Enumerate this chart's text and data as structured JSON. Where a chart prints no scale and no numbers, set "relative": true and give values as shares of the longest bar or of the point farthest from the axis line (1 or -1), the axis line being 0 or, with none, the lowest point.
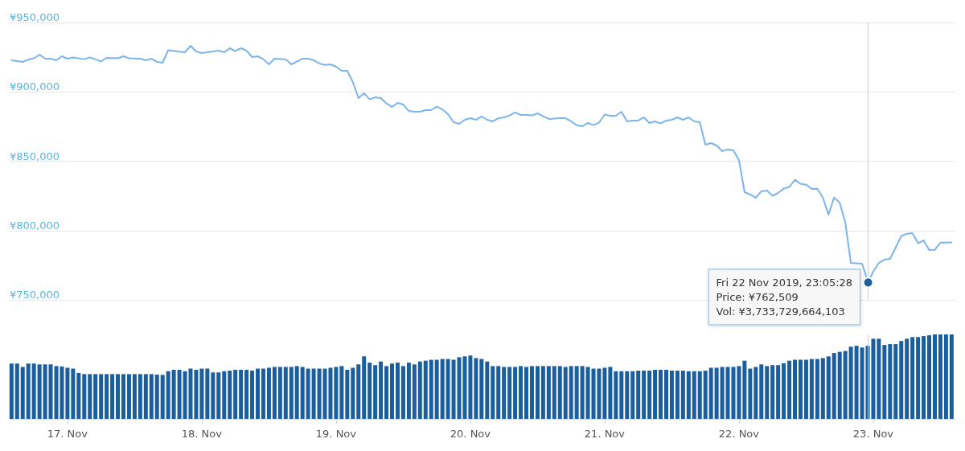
{
  "chart_data": [
    {
      "type": "line",
      "tick_labels": "y",
      "grid": "y",
      "xlim": [
        "2019-11-16T13:40",
        "2019-11-23T14:40"
      ],
      "ylim": [
        750000,
        950000
      ],
      "yticks": [
        {
          "value": 750000,
          "label": "¥750,000"
        },
        {
          "value": 800000,
          "label": "¥800,000"
        },
        {
          "value": 850000,
          "label": "¥850,000"
        },
        {
          "value": 900000,
          "label": "¥900,000"
        },
        {
          "value": 950000,
          "label": "¥950,000"
        }
      ],
      "ref_lines": [
        {
          "axis": "x",
          "value": "2019-11-22T23:05",
          "label": null,
          "color": "#cccccc"
        }
      ],
      "annotations": [
        {
          "text": "Fri 22 Nov 2019, 23:05:28\nPrice: ¥762,509\nVol: ¥3,733,729,664,103",
          "x": "2019-11-22T23:05",
          "y": 762509
        }
      ],
      "series": [
        {
          "color": "#7cb5ec",
          "x": [
            "2019-11-16T14:00",
            "2019-11-16T16:00",
            "2019-11-16T17:00",
            "2019-11-16T18:00",
            "2019-11-16T19:00",
            "2019-11-16T20:00",
            "2019-11-16T21:00",
            "2019-11-16T22:00",
            "2019-11-16T23:00",
            "2019-11-17T00:00",
            "2019-11-17T01:00",
            "2019-11-17T03:00",
            "2019-11-17T04:00",
            "2019-11-17T06:00",
            "2019-11-17T07:00",
            "2019-11-17T09:00",
            "2019-11-17T10:00",
            "2019-11-17T11:00",
            "2019-11-17T13:00",
            "2019-11-17T14:00",
            "2019-11-17T15:00",
            "2019-11-17T16:00",
            "2019-11-17T17:00",
            "2019-11-17T18:00",
            "2019-11-17T21:00",
            "2019-11-17T22:00",
            "2019-11-17T23:00",
            "2019-11-18T00:00",
            "2019-11-18T03:00",
            "2019-11-18T04:00",
            "2019-11-18T05:00",
            "2019-11-18T06:00",
            "2019-11-18T07:00",
            "2019-11-18T08:00",
            "2019-11-18T09:00",
            "2019-11-18T10:00",
            "2019-11-18T11:00",
            "2019-11-18T12:00",
            "2019-11-18T13:00",
            "2019-11-18T15:00",
            "2019-11-18T16:00",
            "2019-11-18T18:00",
            "2019-11-18T19:00",
            "2019-11-18T20:00",
            "2019-11-18T21:00",
            "2019-11-18T22:00",
            "2019-11-18T23:00",
            "2019-11-19T00:00",
            "2019-11-19T01:00",
            "2019-11-19T02:00",
            "2019-11-19T03:00",
            "2019-11-19T04:00",
            "2019-11-19T05:00",
            "2019-11-19T06:00",
            "2019-11-19T07:00",
            "2019-11-19T08:00",
            "2019-11-19T09:00",
            "2019-11-19T10:00",
            "2019-11-19T11:00",
            "2019-11-19T12:00",
            "2019-11-19T13:00",
            "2019-11-19T14:00",
            "2019-11-19T15:00",
            "2019-11-19T16:00",
            "2019-11-19T17:00",
            "2019-11-19T18:00",
            "2019-11-19T19:00",
            "2019-11-19T20:00",
            "2019-11-19T21:00",
            "2019-11-19T22:00",
            "2019-11-19T23:00",
            "2019-11-20T00:00",
            "2019-11-20T01:00",
            "2019-11-20T02:00",
            "2019-11-20T03:00",
            "2019-11-20T04:00",
            "2019-11-20T05:00",
            "2019-11-20T06:00",
            "2019-11-20T07:00",
            "2019-11-20T08:00",
            "2019-11-20T09:00",
            "2019-11-20T10:00",
            "2019-11-20T11:00",
            "2019-11-20T12:00",
            "2019-11-20T13:00",
            "2019-11-20T14:00",
            "2019-11-20T16:00",
            "2019-11-20T17:00",
            "2019-11-20T18:00",
            "2019-11-20T19:00",
            "2019-11-20T20:00",
            "2019-11-20T21:00",
            "2019-11-20T22:00",
            "2019-11-20T23:00",
            "2019-11-21T00:00",
            "2019-11-21T01:00",
            "2019-11-21T02:00",
            "2019-11-21T03:00",
            "2019-11-21T04:00",
            "2019-11-21T05:00",
            "2019-11-21T06:00",
            "2019-11-21T07:00",
            "2019-11-21T08:00",
            "2019-11-21T09:00",
            "2019-11-21T10:00",
            "2019-11-21T11:00",
            "2019-11-21T12:00",
            "2019-11-21T13:00",
            "2019-11-21T14:00",
            "2019-11-21T15:00",
            "2019-11-21T16:00",
            "2019-11-21T17:00",
            "2019-11-21T18:00",
            "2019-11-21T19:00",
            "2019-11-21T20:00",
            "2019-11-21T21:00",
            "2019-11-21T22:00",
            "2019-11-21T23:00",
            "2019-11-22T00:00",
            "2019-11-22T01:00",
            "2019-11-22T02:00",
            "2019-11-22T03:00",
            "2019-11-22T04:00",
            "2019-11-22T05:00",
            "2019-11-22T06:00",
            "2019-11-22T07:00",
            "2019-11-22T08:00",
            "2019-11-22T09:00",
            "2019-11-22T10:00",
            "2019-11-22T11:00",
            "2019-11-22T12:00",
            "2019-11-22T13:00",
            "2019-11-22T14:00",
            "2019-11-22T15:00",
            "2019-11-22T16:00",
            "2019-11-22T17:00",
            "2019-11-22T18:00",
            "2019-11-22T19:00",
            "2019-11-22T20:00",
            "2019-11-22T21:00",
            "2019-11-22T22:00",
            "2019-11-22T23:05",
            "2019-11-23T00:00",
            "2019-11-23T01:00",
            "2019-11-23T02:00",
            "2019-11-23T03:00",
            "2019-11-23T04:00",
            "2019-11-23T05:00",
            "2019-11-23T06:00",
            "2019-11-23T07:00",
            "2019-11-23T08:00",
            "2019-11-23T09:00",
            "2019-11-23T10:00",
            "2019-11-23T11:00",
            "2019-11-23T12:00",
            "2019-11-23T13:00",
            "2019-11-23T14:00"
          ],
          "values": [
            922750,
            921600,
            923350,
            924200,
            926800,
            923900,
            923900,
            922750,
            925650,
            923900,
            924800,
            923550,
            924850,
            921950,
            924500,
            924200,
            925650,
            924200,
            923900,
            922750,
            923900,
            921600,
            921000,
            930000,
            928550,
            933200,
            929100,
            927950,
            929700,
            928550,
            931450,
            929350,
            931450,
            929700,
            925050,
            925650,
            923550,
            919850,
            923900,
            923550,
            919850,
            923900,
            923900,
            922750,
            920450,
            919450,
            919850,
            918100,
            915200,
            915200,
            907100,
            895500,
            899000,
            894600,
            896100,
            895500,
            891650,
            889100,
            892000,
            890900,
            886200,
            885650,
            885650,
            886800,
            886800,
            889400,
            887400,
            883900,
            878100,
            876950,
            879850,
            881000,
            879850,
            882200,
            879850,
            878700,
            881000,
            881600,
            883000,
            885100,
            883350,
            883350,
            883000,
            884500,
            882400,
            880450,
            881000,
            881000,
            878700,
            876000,
            875200,
            877550,
            876000,
            877800,
            883600,
            882750,
            882750,
            885650,
            878700,
            879300,
            879300,
            881600,
            877550,
            878700,
            877200,
            879300,
            879850,
            881600,
            879850,
            881600,
            878700,
            878100,
            861900,
            863050,
            861300,
            857250,
            858400,
            857800,
            850850,
            827700,
            825950,
            823650,
            828250,
            828850,
            825000,
            827100,
            830200,
            831450,
            836600,
            833700,
            833100,
            830000,
            830200,
            823650,
            811450,
            823800,
            820150,
            805650,
            776650,
            776350,
            776100,
            762509,
            770600,
            776650,
            779000,
            779550,
            787700,
            796000,
            797700,
            798100,
            790850,
            792900,
            785950,
            786100,
            791300,
            791300,
            791500
          ]
        }
      ]
    },
    {
      "type": "bar",
      "relative": true,
      "tick_labels": "x",
      "xlim": [
        "2019-11-16T13:40",
        "2019-11-23T14:40"
      ],
      "xticks": [
        {
          "value": "2019-11-17",
          "label": "17. Nov"
        },
        {
          "value": "2019-11-18",
          "label": "18. Nov"
        },
        {
          "value": "2019-11-19",
          "label": "19. Nov"
        },
        {
          "value": "2019-11-20",
          "label": "20. Nov"
        },
        {
          "value": "2019-11-21",
          "label": "21. Nov"
        },
        {
          "value": "2019-11-22",
          "label": "22. Nov"
        },
        {
          "value": "2019-11-23",
          "label": "23. Nov"
        }
      ],
      "ref_lines": [
        {
          "axis": "x",
          "value": "2019-11-22T23:05",
          "label": null,
          "color": "#cccccc"
        }
      ],
      "x": [
        "2019-11-16T14:00",
        "2019-11-16T15:00",
        "2019-11-16T16:00",
        "2019-11-16T17:00",
        "2019-11-16T18:00",
        "2019-11-16T19:00",
        "2019-11-16T20:00",
        "2019-11-16T21:00",
        "2019-11-16T22:00",
        "2019-11-16T23:00",
        "2019-11-17T00:00",
        "2019-11-17T01:00",
        "2019-11-17T02:00",
        "2019-11-17T03:00",
        "2019-11-17T04:00",
        "2019-11-17T05:00",
        "2019-11-17T06:00",
        "2019-11-17T07:00",
        "2019-11-17T08:00",
        "2019-11-17T09:00",
        "2019-11-17T10:00",
        "2019-11-17T11:00",
        "2019-11-17T12:00",
        "2019-11-17T13:00",
        "2019-11-17T14:00",
        "2019-11-17T15:00",
        "2019-11-17T16:00",
        "2019-11-17T17:00",
        "2019-11-17T18:00",
        "2019-11-17T19:00",
        "2019-11-17T20:00",
        "2019-11-17T21:00",
        "2019-11-17T22:00",
        "2019-11-17T23:00",
        "2019-11-18T00:00",
        "2019-11-18T01:00",
        "2019-11-18T02:00",
        "2019-11-18T03:00",
        "2019-11-18T04:00",
        "2019-11-18T05:00",
        "2019-11-18T06:00",
        "2019-11-18T07:00",
        "2019-11-18T08:00",
        "2019-11-18T09:00",
        "2019-11-18T10:00",
        "2019-11-18T11:00",
        "2019-11-18T12:00",
        "2019-11-18T13:00",
        "2019-11-18T14:00",
        "2019-11-18T15:00",
        "2019-11-18T16:00",
        "2019-11-18T17:00",
        "2019-11-18T18:00",
        "2019-11-18T19:00",
        "2019-11-18T20:00",
        "2019-11-18T21:00",
        "2019-11-18T22:00",
        "2019-11-18T23:00",
        "2019-11-19T00:00",
        "2019-11-19T01:00",
        "2019-11-19T02:00",
        "2019-11-19T03:00",
        "2019-11-19T04:00",
        "2019-11-19T05:00",
        "2019-11-19T06:00",
        "2019-11-19T07:00",
        "2019-11-19T08:00",
        "2019-11-19T09:00",
        "2019-11-19T10:00",
        "2019-11-19T11:00",
        "2019-11-19T12:00",
        "2019-11-19T13:00",
        "2019-11-19T14:00",
        "2019-11-19T15:00",
        "2019-11-19T16:00",
        "2019-11-19T17:00",
        "2019-11-19T18:00",
        "2019-11-19T19:00",
        "2019-11-19T20:00",
        "2019-11-19T21:00",
        "2019-11-19T22:00",
        "2019-11-19T23:00",
        "2019-11-20T00:00",
        "2019-11-20T01:00",
        "2019-11-20T02:00",
        "2019-11-20T03:00",
        "2019-11-20T04:00",
        "2019-11-20T05:00",
        "2019-11-20T06:00",
        "2019-11-20T07:00",
        "2019-11-20T08:00",
        "2019-11-20T09:00",
        "2019-11-20T10:00",
        "2019-11-20T11:00",
        "2019-11-20T12:00",
        "2019-11-20T13:00",
        "2019-11-20T14:00",
        "2019-11-20T15:00",
        "2019-11-20T16:00",
        "2019-11-20T17:00",
        "2019-11-20T18:00",
        "2019-11-20T19:00",
        "2019-11-20T20:00",
        "2019-11-20T21:00",
        "2019-11-20T22:00",
        "2019-11-20T23:00",
        "2019-11-21T00:00",
        "2019-11-21T01:00",
        "2019-11-21T02:00",
        "2019-11-21T03:00",
        "2019-11-21T04:00",
        "2019-11-21T05:00",
        "2019-11-21T06:00",
        "2019-11-21T07:00",
        "2019-11-21T08:00",
        "2019-11-21T09:00",
        "2019-11-21T10:00",
        "2019-11-21T11:00",
        "2019-11-21T12:00",
        "2019-11-21T13:00",
        "2019-11-21T14:00",
        "2019-11-21T15:00",
        "2019-11-21T16:00",
        "2019-11-21T17:00",
        "2019-11-21T18:00",
        "2019-11-21T19:00",
        "2019-11-21T20:00",
        "2019-11-21T21:00",
        "2019-11-21T22:00",
        "2019-11-21T23:00",
        "2019-11-22T00:00",
        "2019-11-22T01:00",
        "2019-11-22T02:00",
        "2019-11-22T03:00",
        "2019-11-22T04:00",
        "2019-11-22T05:00",
        "2019-11-22T06:00",
        "2019-11-22T07:00",
        "2019-11-22T08:00",
        "2019-11-22T09:00",
        "2019-11-22T10:00",
        "2019-11-22T11:00",
        "2019-11-22T12:00",
        "2019-11-22T13:00",
        "2019-11-22T14:00",
        "2019-11-22T15:00",
        "2019-11-22T16:00",
        "2019-11-22T17:00",
        "2019-11-22T18:00",
        "2019-11-22T19:00",
        "2019-11-22T20:00",
        "2019-11-22T21:00",
        "2019-11-22T22:00",
        "2019-11-22T23:00",
        "2019-11-23T00:00",
        "2019-11-23T01:00",
        "2019-11-23T02:00",
        "2019-11-23T03:00",
        "2019-11-23T04:00",
        "2019-11-23T05:00",
        "2019-11-23T06:00",
        "2019-11-23T07:00",
        "2019-11-23T08:00",
        "2019-11-23T09:00",
        "2019-11-23T10:00",
        "2019-11-23T11:00",
        "2019-11-23T12:00",
        "2019-11-23T13:00",
        "2019-11-23T14:00"
      ],
      "series": [
        {
          "color": "#1b5e9e",
          "values": [
            0.655,
            0.655,
            0.615,
            0.655,
            0.655,
            0.645,
            0.645,
            0.645,
            0.625,
            0.621,
            0.605,
            0.595,
            0.544,
            0.53,
            0.53,
            0.53,
            0.53,
            0.53,
            0.53,
            0.53,
            0.53,
            0.53,
            0.53,
            0.53,
            0.53,
            0.53,
            0.524,
            0.521,
            0.564,
            0.581,
            0.581,
            0.564,
            0.595,
            0.581,
            0.595,
            0.595,
            0.55,
            0.55,
            0.564,
            0.571,
            0.581,
            0.581,
            0.581,
            0.571,
            0.595,
            0.595,
            0.605,
            0.615,
            0.615,
            0.615,
            0.615,
            0.625,
            0.615,
            0.595,
            0.595,
            0.595,
            0.595,
            0.605,
            0.615,
            0.625,
            0.581,
            0.605,
            0.645,
            0.74,
            0.666,
            0.636,
            0.679,
            0.625,
            0.655,
            0.666,
            0.625,
            0.666,
            0.645,
            0.679,
            0.689,
            0.7,
            0.7,
            0.709,
            0.709,
            0.7,
            0.73,
            0.74,
            0.75,
            0.72,
            0.709,
            0.679,
            0.625,
            0.625,
            0.615,
            0.615,
            0.615,
            0.625,
            0.615,
            0.625,
            0.625,
            0.625,
            0.625,
            0.625,
            0.625,
            0.615,
            0.625,
            0.625,
            0.625,
            0.615,
            0.595,
            0.595,
            0.605,
            0.615,
            0.564,
            0.564,
            0.564,
            0.564,
            0.571,
            0.571,
            0.571,
            0.581,
            0.581,
            0.581,
            0.571,
            0.571,
            0.571,
            0.564,
            0.564,
            0.564,
            0.571,
            0.605,
            0.605,
            0.615,
            0.615,
            0.615,
            0.625,
            0.689,
            0.595,
            0.615,
            0.645,
            0.625,
            0.636,
            0.636,
            0.659,
            0.689,
            0.7,
            0.7,
            0.7,
            0.709,
            0.709,
            0.72,
            0.74,
            0.78,
            0.794,
            0.804,
            0.855,
            0.865,
            0.845,
            0.865,
            0.949,
            0.949,
            0.875,
            0.885,
            0.885,
            0.922,
            0.949,
            0.969,
            0.969,
            0.98,
            0.99,
            1,
            1,
            1,
            1
          ]
        }
      ]
    }
  ]
}
